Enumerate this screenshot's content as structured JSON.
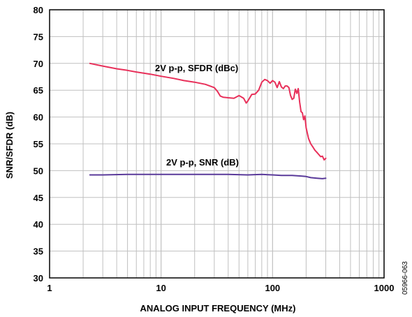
{
  "chart_data": {
    "type": "line",
    "xlabel": "ANALOG INPUT FREQUENCY (MHz)",
    "ylabel": "SNR/SFDR (dB)",
    "x_scale": "log",
    "xlim": [
      1,
      1000
    ],
    "ylim": [
      30,
      80
    ],
    "x_ticks": [
      "1",
      "10",
      "100",
      "1000"
    ],
    "y_ticks": [
      "30",
      "35",
      "40",
      "45",
      "50",
      "55",
      "60",
      "65",
      "70",
      "75",
      "80"
    ],
    "grid": true,
    "figure_id": "05966-063",
    "series": [
      {
        "name": "2V p-p, SFDR (dBc)",
        "color": "#e8305a",
        "x": [
          2.3,
          3,
          4,
          5,
          6,
          8,
          10,
          13,
          16,
          20,
          25,
          30,
          32,
          34,
          36,
          40,
          45,
          50,
          55,
          58,
          60,
          65,
          70,
          75,
          80,
          85,
          90,
          95,
          100,
          105,
          110,
          115,
          120,
          125,
          130,
          135,
          140,
          145,
          150,
          155,
          160,
          165,
          170,
          175,
          180,
          185,
          190,
          195,
          200,
          210,
          220,
          230,
          240,
          250,
          260,
          270,
          280,
          290,
          300
        ],
        "y": [
          70.0,
          69.5,
          69.0,
          68.7,
          68.4,
          68.0,
          67.6,
          67.2,
          66.8,
          66.5,
          66.1,
          65.5,
          64.8,
          63.9,
          63.7,
          63.6,
          63.5,
          64.0,
          63.5,
          62.6,
          63.0,
          64.2,
          64.3,
          65.0,
          66.5,
          67.0,
          66.8,
          66.3,
          66.8,
          66.5,
          65.5,
          66.6,
          65.6,
          65.3,
          65.8,
          65.8,
          65.5,
          64.0,
          63.3,
          63.5,
          65.2,
          64.4,
          65.3,
          62.8,
          61.0,
          60.8,
          59.5,
          60.2,
          58.0,
          56.0,
          55.0,
          54.4,
          53.8,
          53.4,
          53.0,
          52.6,
          52.7,
          52.0,
          52.3
        ]
      },
      {
        "name": "2V p-p, SNR (dB)",
        "color": "#5a3a9a",
        "x": [
          2.3,
          3,
          5,
          10,
          20,
          40,
          60,
          80,
          100,
          120,
          150,
          180,
          200,
          220,
          250,
          280,
          300
        ],
        "y": [
          49.2,
          49.2,
          49.3,
          49.3,
          49.3,
          49.3,
          49.2,
          49.3,
          49.2,
          49.1,
          49.1,
          49.0,
          48.9,
          48.7,
          48.6,
          48.5,
          48.6
        ]
      }
    ]
  }
}
